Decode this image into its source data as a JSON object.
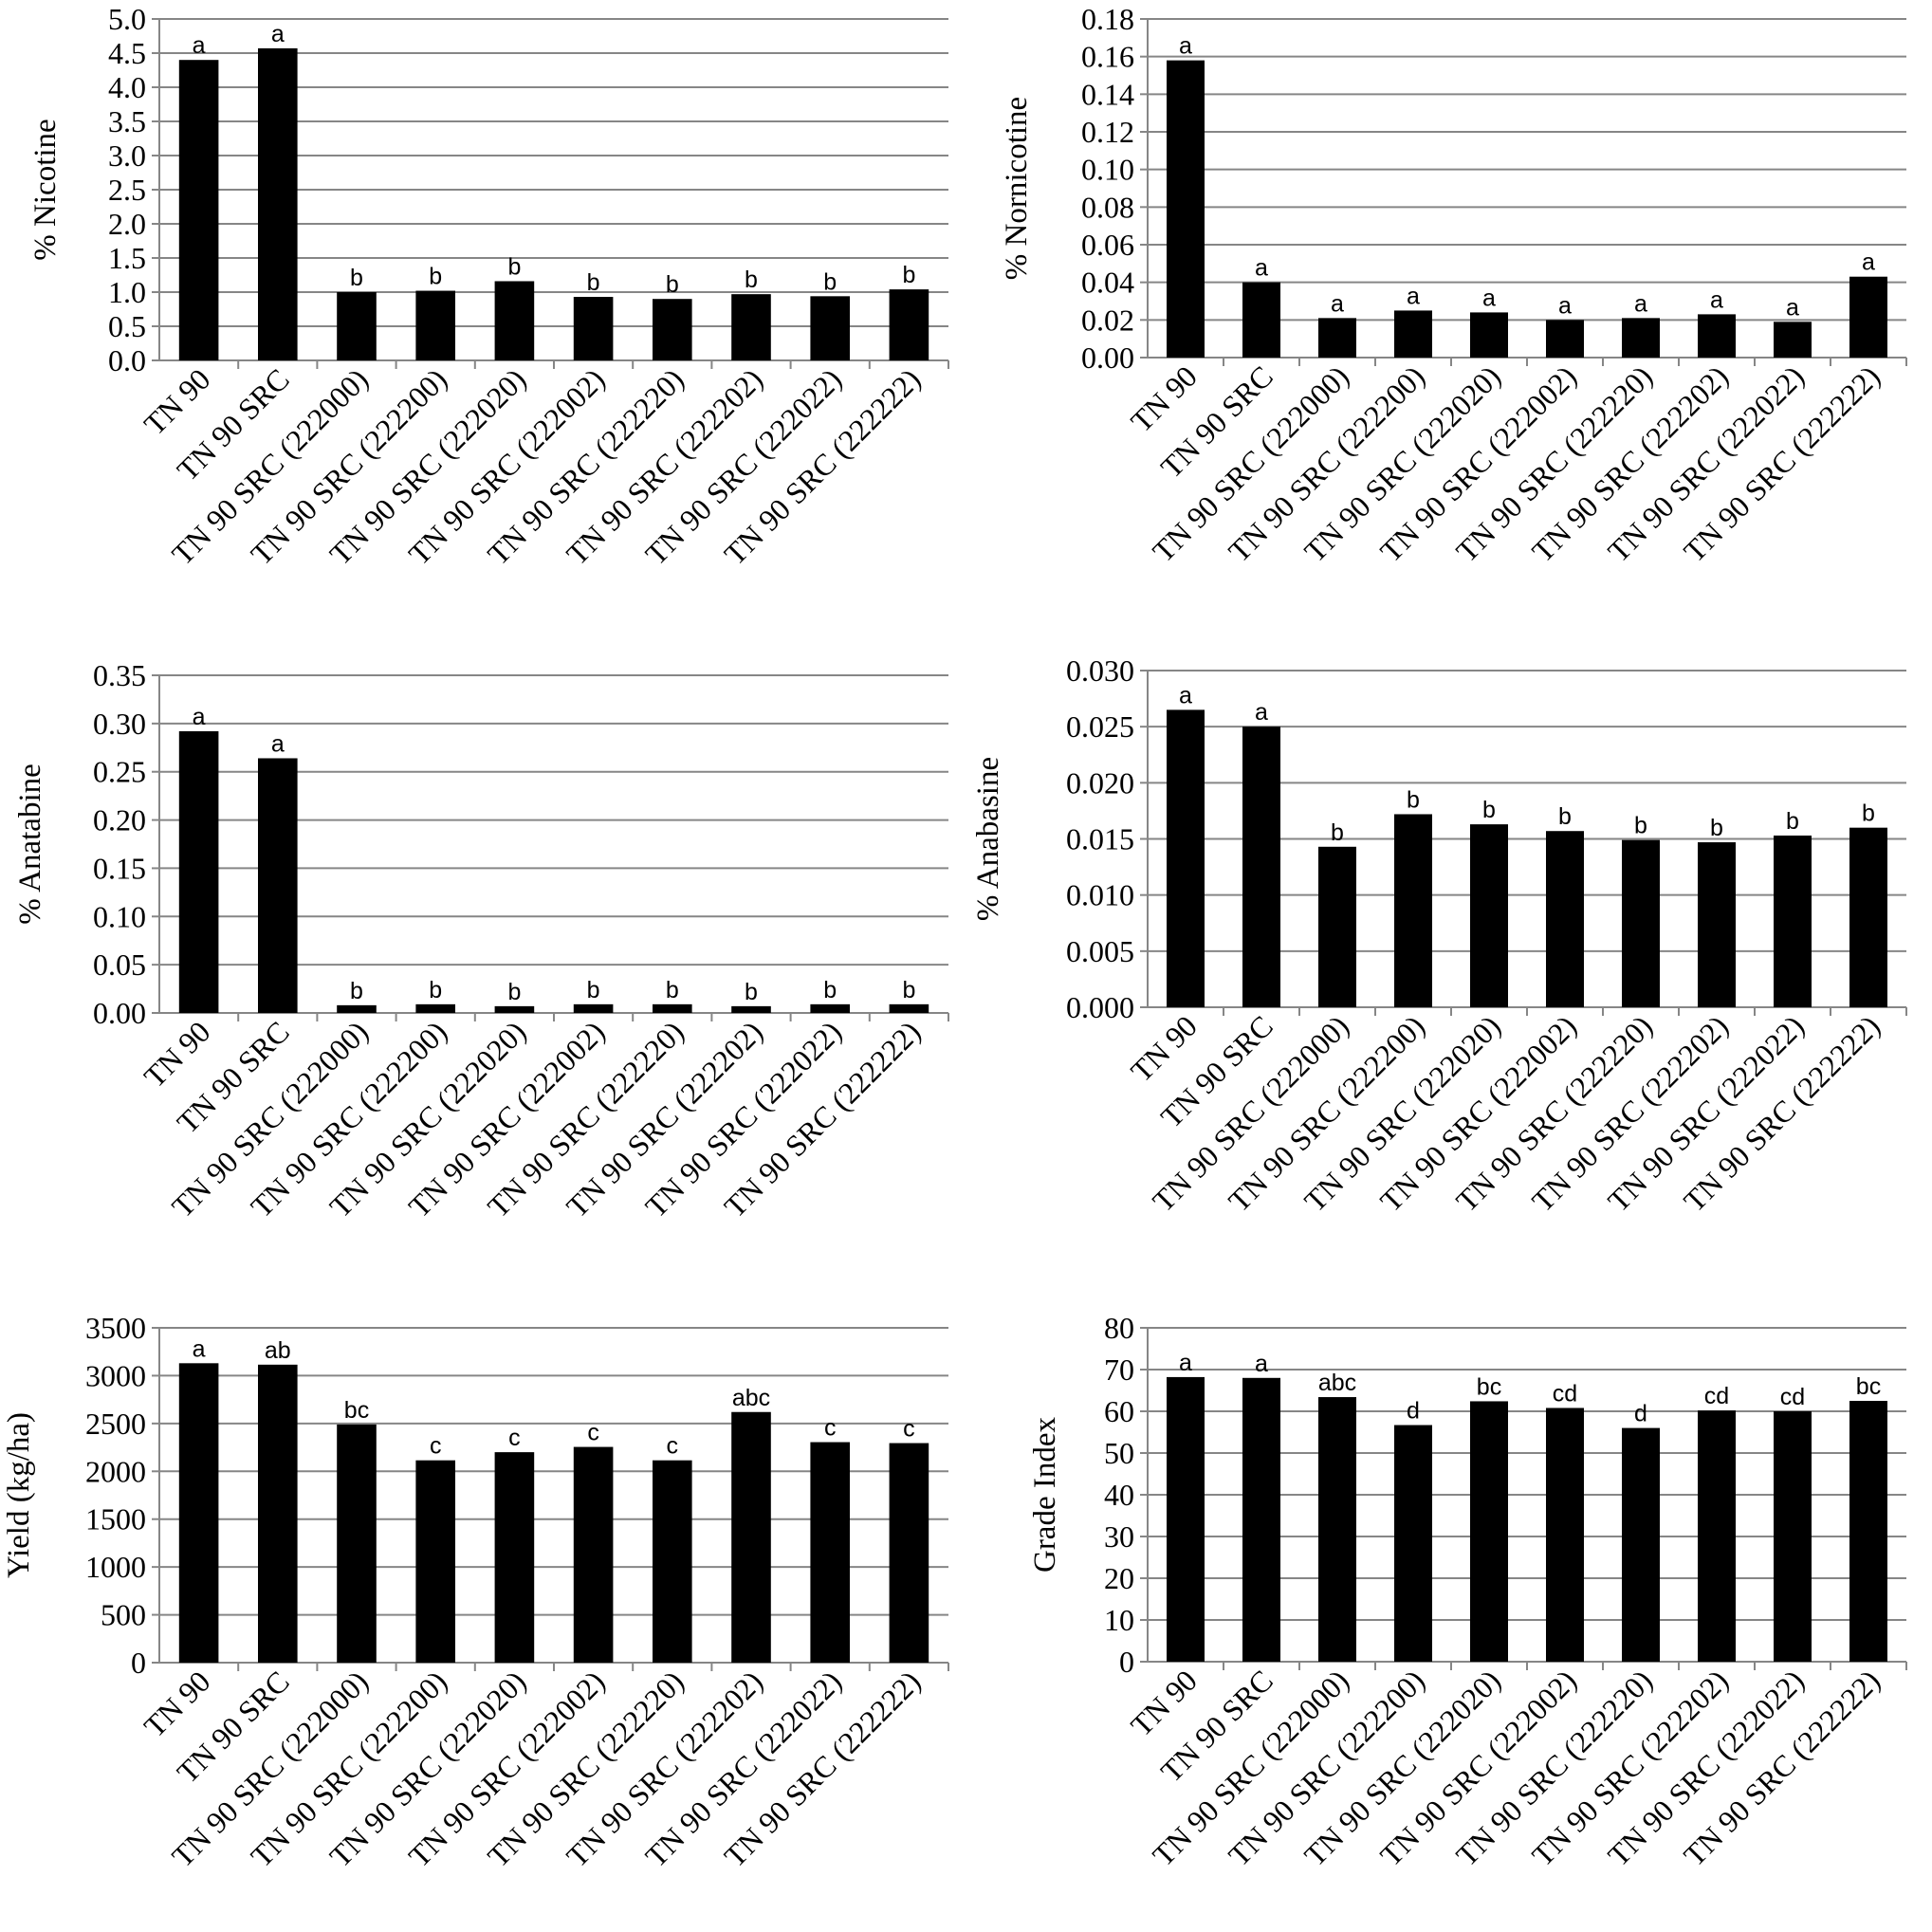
{
  "chart_data": [
    {
      "type": "bar",
      "ylabel": "% Nicotine",
      "ylim": [
        0,
        5.0
      ],
      "yticks": [
        "0.0",
        "0.5",
        "1.0",
        "1.5",
        "2.0",
        "2.5",
        "3.0",
        "3.5",
        "4.0",
        "4.5",
        "5.0"
      ],
      "categories": [
        "TN 90",
        "TN 90 SRC",
        "TN 90 SRC (222000)",
        "TN 90 SRC (222200)",
        "TN 90 SRC (222020)",
        "TN 90 SRC (222002)",
        "TN 90 SRC (222220)",
        "TN 90 SRC (222202)",
        "TN 90 SRC (222022)",
        "TN 90 SRC (222222)"
      ],
      "values": [
        4.4,
        4.57,
        1.0,
        1.02,
        1.16,
        0.93,
        0.9,
        0.97,
        0.94,
        1.04
      ],
      "letters": [
        "a",
        "a",
        "b",
        "b",
        "b",
        "b",
        "b",
        "b",
        "b",
        "b"
      ]
    },
    {
      "type": "bar",
      "ylabel": "% Nornicotine",
      "ylim": [
        0,
        0.18
      ],
      "yticks": [
        "0.00",
        "0.02",
        "0.04",
        "0.06",
        "0.08",
        "0.10",
        "0.12",
        "0.14",
        "0.16",
        "0.18"
      ],
      "categories": [
        "TN 90",
        "TN 90 SRC",
        "TN 90 SRC (222000)",
        "TN 90 SRC (222200)",
        "TN 90 SRC (222020)",
        "TN 90 SRC (222002)",
        "TN 90 SRC (222220)",
        "TN 90 SRC (222202)",
        "TN 90 SRC (222022)",
        "TN 90 SRC (222222)"
      ],
      "values": [
        0.158,
        0.04,
        0.021,
        0.025,
        0.024,
        0.02,
        0.021,
        0.023,
        0.019,
        0.043
      ],
      "letters": [
        "a",
        "a",
        "a",
        "a",
        "a",
        "a",
        "a",
        "a",
        "a",
        "a"
      ]
    },
    {
      "type": "bar",
      "ylabel": "% Anatabine",
      "ylim": [
        0,
        0.35
      ],
      "yticks": [
        "0.00",
        "0.05",
        "0.10",
        "0.15",
        "0.20",
        "0.25",
        "0.30",
        "0.35"
      ],
      "categories": [
        "TN 90",
        "TN 90 SRC",
        "TN 90 SRC (222000)",
        "TN 90 SRC (222200)",
        "TN 90 SRC (222020)",
        "TN 90 SRC (222002)",
        "TN 90 SRC (222220)",
        "TN 90 SRC (222202)",
        "TN 90 SRC (222022)",
        "TN 90 SRC (222222)"
      ],
      "values": [
        0.292,
        0.264,
        0.008,
        0.009,
        0.007,
        0.009,
        0.009,
        0.007,
        0.009,
        0.009
      ],
      "letters": [
        "a",
        "a",
        "b",
        "b",
        "b",
        "b",
        "b",
        "b",
        "b",
        "b"
      ]
    },
    {
      "type": "bar",
      "ylabel": "% Anabasine",
      "ylim": [
        0,
        0.03
      ],
      "yticks": [
        "0.000",
        "0.005",
        "0.010",
        "0.015",
        "0.020",
        "0.025",
        "0.030"
      ],
      "categories": [
        "TN 90",
        "TN 90 SRC",
        "TN 90 SRC (222000)",
        "TN 90 SRC (222200)",
        "TN 90 SRC (222020)",
        "TN 90 SRC (222002)",
        "TN 90 SRC (222220)",
        "TN 90 SRC (222202)",
        "TN 90 SRC (222022)",
        "TN 90 SRC (222222)"
      ],
      "values": [
        0.0265,
        0.025,
        0.0143,
        0.0172,
        0.0163,
        0.0157,
        0.0149,
        0.0147,
        0.0153,
        0.016
      ],
      "letters": [
        "a",
        "a",
        "b",
        "b",
        "b",
        "b",
        "b",
        "b",
        "b",
        "b"
      ]
    },
    {
      "type": "bar",
      "ylabel": "Yield (kg/ha)",
      "ylim": [
        0,
        3500
      ],
      "yticks": [
        "0",
        "500",
        "1000",
        "1500",
        "2000",
        "2500",
        "3000",
        "3500"
      ],
      "categories": [
        "TN 90",
        "TN 90 SRC",
        "TN 90 SRC (222000)",
        "TN 90 SRC (222200)",
        "TN 90 SRC (222020)",
        "TN 90 SRC (222002)",
        "TN 90 SRC (222220)",
        "TN 90 SRC (222202)",
        "TN 90 SRC (222022)",
        "TN 90 SRC (222222)"
      ],
      "values": [
        3130,
        3115,
        2490,
        2115,
        2200,
        2255,
        2115,
        2620,
        2305,
        2295
      ],
      "letters": [
        "a",
        "ab",
        "bc",
        "c",
        "c",
        "c",
        "c",
        "abc",
        "c",
        "c"
      ]
    },
    {
      "type": "bar",
      "ylabel": "Grade Index",
      "ylim": [
        0,
        80
      ],
      "yticks": [
        "0",
        "10",
        "20",
        "30",
        "40",
        "50",
        "60",
        "70",
        "80"
      ],
      "categories": [
        "TN 90",
        "TN 90 SRC",
        "TN 90 SRC (222000)",
        "TN 90 SRC (222200)",
        "TN 90 SRC (222020)",
        "TN 90 SRC (222002)",
        "TN 90 SRC (222220)",
        "TN 90 SRC (222202)",
        "TN 90 SRC (222022)",
        "TN 90 SRC (222222)"
      ],
      "values": [
        68.2,
        68.0,
        63.4,
        56.7,
        62.4,
        60.8,
        56.0,
        60.2,
        60.0,
        62.5
      ],
      "letters": [
        "a",
        "a",
        "abc",
        "d",
        "bc",
        "cd",
        "d",
        "cd",
        "cd",
        "bc"
      ]
    }
  ]
}
